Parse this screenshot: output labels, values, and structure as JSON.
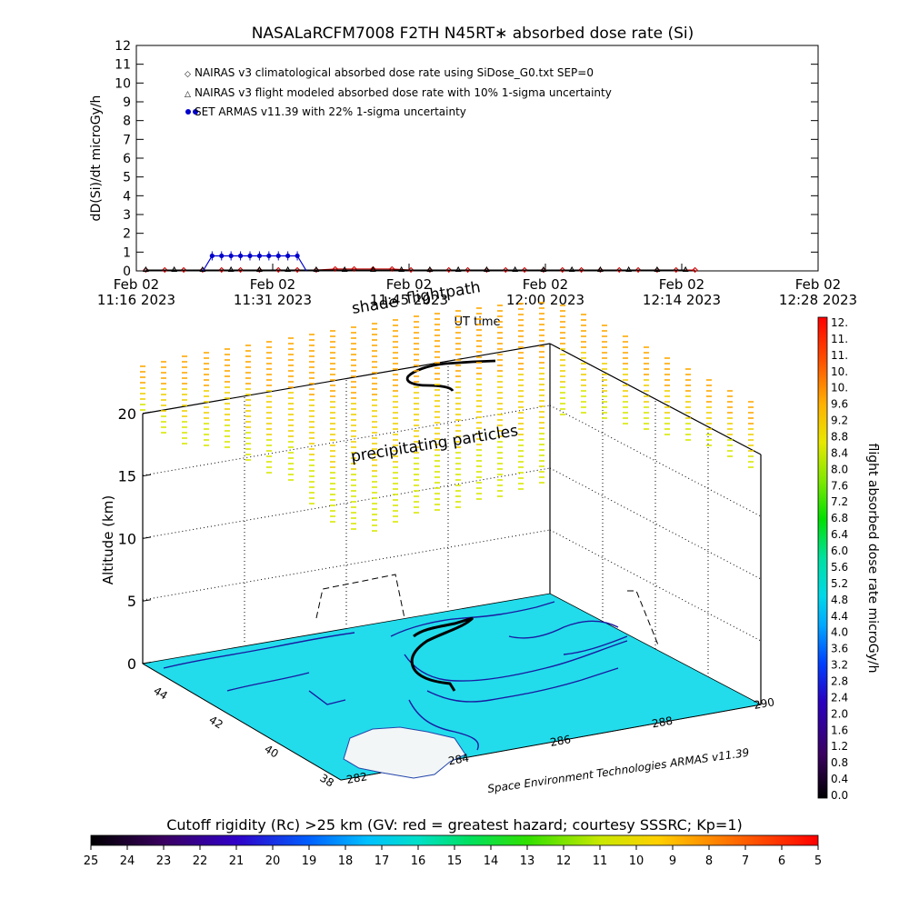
{
  "top_chart": {
    "title": "NASALaRCFM7008  F2TH N45RT∗ absorbed dose rate (Si)",
    "ylabel": "dD(Si)/dt microGy/h",
    "xlabel": "UT time",
    "y_ticks": [
      "0",
      "1",
      "2",
      "3",
      "4",
      "5",
      "6",
      "7",
      "8",
      "9",
      "10",
      "11",
      "12"
    ],
    "x_ticks": [
      {
        "d": "Feb 02",
        "t": "11:16 2023"
      },
      {
        "d": "Feb 02",
        "t": "11:31 2023"
      },
      {
        "d": "Feb 02",
        "t": "11:45 2023"
      },
      {
        "d": "Feb 02",
        "t": "12:00 2023"
      },
      {
        "d": "Feb 02",
        "t": "12:14 2023"
      },
      {
        "d": "Feb 02",
        "t": "12:28 2023"
      }
    ],
    "legend": [
      "NAIRAS v3 climatological absorbed dose rate using SiDose_G0.txt SEP=0",
      "NAIRAS v3 flight modeled absorbed dose rate with 10% 1-sigma uncertainty",
      "SET ARMAS v11.39 with 22% 1-sigma uncertainty"
    ]
  },
  "chart_data": {
    "type": "scatter",
    "title": "NASALaRCFM7008  F2TH N45RT∗ absorbed dose rate (Si)",
    "xlabel": "UT time",
    "ylabel": "dD(Si)/dt microGy/h",
    "ylim": [
      0,
      12
    ],
    "xlim": [
      "11:16",
      "12:28"
    ],
    "grid": false,
    "legend_position": "top-left",
    "series": [
      {
        "name": "NAIRAS v3 climatological absorbed dose rate using SiDose_G0.txt SEP=0",
        "color": "#cc0000",
        "marker": "diamond",
        "x": [
          "11:17",
          "11:19",
          "11:21",
          "11:23",
          "11:25",
          "11:27",
          "11:29",
          "11:31",
          "11:33",
          "11:35",
          "11:37",
          "11:39",
          "11:41",
          "11:43",
          "11:45",
          "11:47",
          "11:49",
          "11:51",
          "11:53",
          "11:55",
          "11:57",
          "11:59",
          "12:01",
          "12:03",
          "12:05",
          "12:07",
          "12:09",
          "12:11",
          "12:13",
          "12:15"
        ],
        "y": [
          0.05,
          0.05,
          0.05,
          0.05,
          0.05,
          0.05,
          0.05,
          0.05,
          0.05,
          0.05,
          0.1,
          0.1,
          0.1,
          0.1,
          0.05,
          0.05,
          0.05,
          0.05,
          0.05,
          0.05,
          0.05,
          0.05,
          0.05,
          0.05,
          0.05,
          0.05,
          0.05,
          0.05,
          0.05,
          0.05
        ]
      },
      {
        "name": "NAIRAS v3 flight modeled absorbed dose rate with 10% 1-sigma uncertainty",
        "color": "#000000",
        "marker": "triangle",
        "x": [
          "11:17",
          "11:20",
          "11:23",
          "11:26",
          "11:29",
          "11:32",
          "11:35",
          "11:38",
          "11:41",
          "11:44",
          "11:47",
          "11:50",
          "11:53",
          "11:56",
          "11:59",
          "12:02",
          "12:05",
          "12:08",
          "12:11",
          "12:14"
        ],
        "y": [
          0.05,
          0.05,
          0.05,
          0.05,
          0.05,
          0.05,
          0.05,
          0.05,
          0.05,
          0.05,
          0.05,
          0.05,
          0.05,
          0.05,
          0.05,
          0.05,
          0.05,
          0.05,
          0.05,
          0.05
        ]
      },
      {
        "name": "SET ARMAS v11.39 with 22% 1-sigma uncertainty",
        "color": "#0000cc",
        "marker": "circle",
        "x": [
          "11:24",
          "11:25",
          "11:26",
          "11:27",
          "11:28",
          "11:29",
          "11:30",
          "11:31",
          "11:32",
          "11:33"
        ],
        "y": [
          0.8,
          0.8,
          0.8,
          0.8,
          0.8,
          0.8,
          0.8,
          0.8,
          0.8,
          0.8
        ]
      }
    ]
  },
  "globe": {
    "annotation_shade": "shade",
    "annotation_flightpath": "flightpath",
    "annotation_precip": "precipitating particles",
    "z_title": "Altitude (km)",
    "z_ticks": [
      "0",
      "5",
      "10",
      "15",
      "20"
    ],
    "lat_ticks": [
      "44",
      "42",
      "40",
      "38"
    ],
    "lon_ticks": [
      "282",
      "284",
      "286",
      "288",
      "290"
    ],
    "credit": "Space Environment Technologies ARMAS v11.39"
  },
  "right_bar": {
    "label": "flight absorbed dose rate microGy/h",
    "ticks": [
      "12.",
      "11.",
      "11.",
      "10.",
      "10.",
      "9.6",
      "9.2",
      "8.8",
      "8.4",
      "8.0",
      "7.6",
      "7.2",
      "6.8",
      "6.4",
      "6.0",
      "5.6",
      "5.2",
      "4.8",
      "4.4",
      "4.0",
      "3.6",
      "3.2",
      "2.8",
      "2.4",
      "2.0",
      "1.6",
      "1.2",
      "0.8",
      "0.4",
      "0.0"
    ]
  },
  "bottom_bar": {
    "title": "Cutoff rigidity (Rc) >25 km (GV: red = greatest hazard; courtesy SSSRC; Kp=1)",
    "ticks": [
      "25",
      "24",
      "23",
      "22",
      "21",
      "20",
      "19",
      "18",
      "17",
      "16",
      "15",
      "14",
      "13",
      "12",
      "11",
      "10",
      "9",
      "8",
      "7",
      "6",
      "5"
    ]
  },
  "colors": {
    "ocean": "#22dcec",
    "land": "#f4f8f8",
    "track": "#000000"
  }
}
